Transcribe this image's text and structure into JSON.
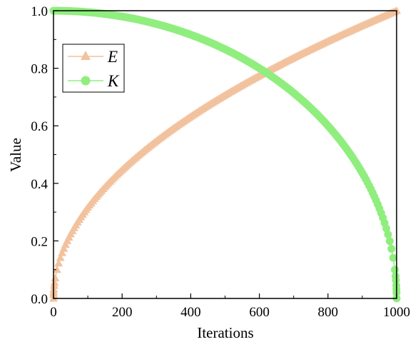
{
  "chart_data": {
    "type": "scatter",
    "xlabel": "Iterations",
    "ylabel": "Value",
    "xlim": [
      0,
      1000
    ],
    "ylim": [
      0.0,
      1.0
    ],
    "xticks": [
      "0",
      "200",
      "400",
      "600",
      "800",
      "1000"
    ],
    "yticks": [
      "0.0",
      "0.2",
      "0.4",
      "0.6",
      "0.8",
      "1.0"
    ],
    "grid": false,
    "legend_position": "top-left",
    "series": [
      {
        "name": "E",
        "marker": "triangle",
        "color": "#F2C29E",
        "formula": "E = (x/1000)^0.5",
        "x_start": 0,
        "x_end": 1000,
        "x_step": 5,
        "sample_points": [
          [
            0,
            0.0
          ],
          [
            100,
            0.32
          ],
          [
            200,
            0.45
          ],
          [
            400,
            0.63
          ],
          [
            600,
            0.77
          ],
          [
            800,
            0.89
          ],
          [
            1000,
            1.0
          ]
        ]
      },
      {
        "name": "K",
        "marker": "circle",
        "color": "#90EE7E",
        "formula": "K = (1-(x/1000)^2)^0.5",
        "x_start": 0,
        "x_end": 1000,
        "x_step": 5,
        "sample_points": [
          [
            0,
            1.0
          ],
          [
            200,
            0.98
          ],
          [
            400,
            0.92
          ],
          [
            600,
            0.8
          ],
          [
            800,
            0.6
          ],
          [
            950,
            0.31
          ],
          [
            1000,
            0.0
          ]
        ]
      }
    ]
  }
}
